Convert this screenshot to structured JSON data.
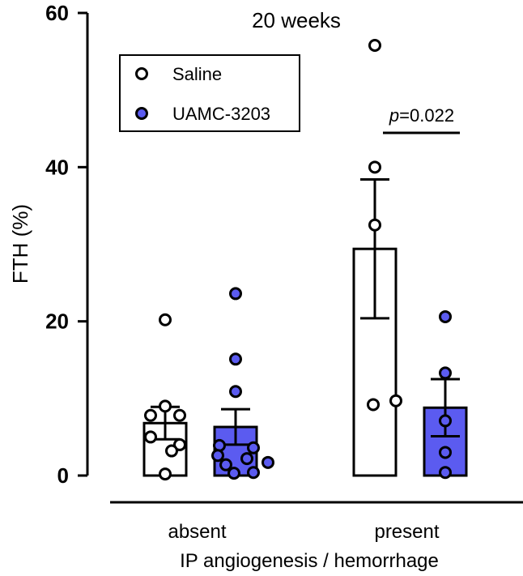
{
  "chart_data": {
    "type": "bar",
    "title": "20 weeks",
    "ylabel": "FTH (%)",
    "xlabel": "IP angiogenesis / hemorrhage",
    "categories": [
      "absent",
      "present"
    ],
    "ylim": [
      0,
      60
    ],
    "yticks": [
      0,
      20,
      40,
      60
    ],
    "legend_position": "top-left",
    "series": [
      {
        "name": "Saline",
        "color": "#ffffff",
        "values": [
          6.8,
          29.4
        ],
        "sem": [
          2.1,
          9.0
        ],
        "points": [
          [
            20.2,
            9.0,
            7.8,
            7.8,
            5.0,
            4.0,
            3.2,
            0.2
          ],
          [
            55.8,
            40.0,
            32.5,
            9.7,
            9.2
          ]
        ]
      },
      {
        "name": "UAMC-3203",
        "color": "#5b5bf0",
        "values": [
          6.3,
          8.8
        ],
        "sem": [
          2.3,
          3.7
        ],
        "points": [
          [
            23.6,
            15.1,
            10.9,
            3.9,
            3.6,
            2.6,
            2.2,
            1.7,
            1.4,
            0.4,
            0.3
          ],
          [
            20.6,
            13.3,
            7.1,
            3.0,
            0.4
          ]
        ]
      }
    ],
    "annotations": [
      {
        "text": "p=0.022",
        "category": "present"
      }
    ]
  }
}
